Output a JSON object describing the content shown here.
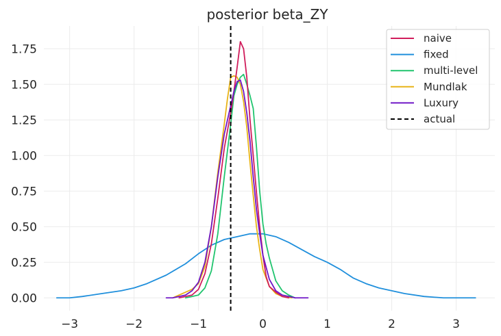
{
  "chart_data": {
    "type": "line",
    "title": "posterior beta_ZY",
    "xlabel": "",
    "ylabel": "",
    "xlim": [
      -3.4,
      3.6
    ],
    "ylim": [
      -0.09,
      1.91
    ],
    "xticks": [
      -3,
      -2,
      -1,
      0,
      1,
      2,
      3
    ],
    "xtick_labels": [
      "−3",
      "−2",
      "−1",
      "0",
      "1",
      "2",
      "3"
    ],
    "yticks": [
      0.0,
      0.25,
      0.5,
      0.75,
      1.0,
      1.25,
      1.5,
      1.75
    ],
    "ytick_labels": [
      "0.00",
      "0.25",
      "0.50",
      "0.75",
      "1.00",
      "1.25",
      "1.50",
      "1.75"
    ],
    "grid": true,
    "legend_position": "top-right",
    "series": [
      {
        "name": "naive",
        "color": "#d01c5b",
        "style": "solid",
        "points": [
          [
            -1.3,
            0.0
          ],
          [
            -1.2,
            0.01
          ],
          [
            -1.1,
            0.02
          ],
          [
            -1.0,
            0.06
          ],
          [
            -0.9,
            0.17
          ],
          [
            -0.8,
            0.38
          ],
          [
            -0.7,
            0.7
          ],
          [
            -0.6,
            1.05
          ],
          [
            -0.5,
            1.3
          ],
          [
            -0.45,
            1.45
          ],
          [
            -0.4,
            1.62
          ],
          [
            -0.35,
            1.8
          ],
          [
            -0.3,
            1.75
          ],
          [
            -0.25,
            1.55
          ],
          [
            -0.2,
            1.25
          ],
          [
            -0.15,
            1.0
          ],
          [
            -0.1,
            0.74
          ],
          [
            -0.05,
            0.5
          ],
          [
            0.0,
            0.3
          ],
          [
            0.05,
            0.15
          ],
          [
            0.1,
            0.08
          ],
          [
            0.2,
            0.04
          ],
          [
            0.3,
            0.01
          ],
          [
            0.4,
            0.0
          ]
        ]
      },
      {
        "name": "fixed",
        "color": "#1f8fdc",
        "style": "solid",
        "points": [
          [
            -3.2,
            0.0
          ],
          [
            -3.0,
            0.0
          ],
          [
            -2.8,
            0.01
          ],
          [
            -2.5,
            0.03
          ],
          [
            -2.2,
            0.05
          ],
          [
            -2.0,
            0.07
          ],
          [
            -1.8,
            0.1
          ],
          [
            -1.5,
            0.16
          ],
          [
            -1.2,
            0.24
          ],
          [
            -1.0,
            0.31
          ],
          [
            -0.8,
            0.37
          ],
          [
            -0.6,
            0.41
          ],
          [
            -0.4,
            0.43
          ],
          [
            -0.2,
            0.45
          ],
          [
            0.0,
            0.45
          ],
          [
            0.2,
            0.43
          ],
          [
            0.4,
            0.39
          ],
          [
            0.6,
            0.34
          ],
          [
            0.8,
            0.29
          ],
          [
            1.0,
            0.25
          ],
          [
            1.2,
            0.2
          ],
          [
            1.4,
            0.14
          ],
          [
            1.6,
            0.1
          ],
          [
            1.8,
            0.07
          ],
          [
            2.0,
            0.05
          ],
          [
            2.2,
            0.03
          ],
          [
            2.5,
            0.01
          ],
          [
            2.8,
            0.0
          ],
          [
            3.3,
            0.0
          ]
        ]
      },
      {
        "name": "multi-level",
        "color": "#20c46e",
        "style": "solid",
        "points": [
          [
            -1.2,
            0.0
          ],
          [
            -1.1,
            0.01
          ],
          [
            -1.0,
            0.02
          ],
          [
            -0.9,
            0.07
          ],
          [
            -0.8,
            0.19
          ],
          [
            -0.7,
            0.45
          ],
          [
            -0.6,
            0.85
          ],
          [
            -0.5,
            1.22
          ],
          [
            -0.45,
            1.42
          ],
          [
            -0.4,
            1.5
          ],
          [
            -0.35,
            1.55
          ],
          [
            -0.3,
            1.57
          ],
          [
            -0.25,
            1.5
          ],
          [
            -0.2,
            1.42
          ],
          [
            -0.15,
            1.33
          ],
          [
            -0.1,
            1.06
          ],
          [
            -0.05,
            0.75
          ],
          [
            0.0,
            0.52
          ],
          [
            0.05,
            0.38
          ],
          [
            0.1,
            0.28
          ],
          [
            0.2,
            0.12
          ],
          [
            0.3,
            0.05
          ],
          [
            0.4,
            0.02
          ],
          [
            0.5,
            0.0
          ]
        ]
      },
      {
        "name": "Mundlak",
        "color": "#e8b317",
        "style": "solid",
        "points": [
          [
            -1.4,
            0.0
          ],
          [
            -1.3,
            0.02
          ],
          [
            -1.2,
            0.04
          ],
          [
            -1.1,
            0.06
          ],
          [
            -1.0,
            0.1
          ],
          [
            -0.9,
            0.22
          ],
          [
            -0.8,
            0.5
          ],
          [
            -0.7,
            0.88
          ],
          [
            -0.6,
            1.22
          ],
          [
            -0.55,
            1.4
          ],
          [
            -0.5,
            1.55
          ],
          [
            -0.45,
            1.56
          ],
          [
            -0.4,
            1.55
          ],
          [
            -0.35,
            1.5
          ],
          [
            -0.3,
            1.38
          ],
          [
            -0.25,
            1.2
          ],
          [
            -0.2,
            0.95
          ],
          [
            -0.15,
            0.72
          ],
          [
            -0.1,
            0.5
          ],
          [
            -0.05,
            0.34
          ],
          [
            0.0,
            0.2
          ],
          [
            0.1,
            0.08
          ],
          [
            0.2,
            0.03
          ],
          [
            0.3,
            0.01
          ],
          [
            0.45,
            0.0
          ]
        ]
      },
      {
        "name": "Luxury",
        "color": "#6f16c6",
        "style": "solid",
        "points": [
          [
            -1.5,
            0.0
          ],
          [
            -1.4,
            0.0
          ],
          [
            -1.3,
            0.01
          ],
          [
            -1.2,
            0.02
          ],
          [
            -1.1,
            0.05
          ],
          [
            -1.0,
            0.11
          ],
          [
            -0.9,
            0.25
          ],
          [
            -0.8,
            0.5
          ],
          [
            -0.7,
            0.85
          ],
          [
            -0.6,
            1.15
          ],
          [
            -0.5,
            1.35
          ],
          [
            -0.45,
            1.45
          ],
          [
            -0.4,
            1.52
          ],
          [
            -0.35,
            1.53
          ],
          [
            -0.3,
            1.45
          ],
          [
            -0.25,
            1.3
          ],
          [
            -0.2,
            1.1
          ],
          [
            -0.15,
            0.85
          ],
          [
            -0.1,
            0.62
          ],
          [
            -0.05,
            0.45
          ],
          [
            0.0,
            0.3
          ],
          [
            0.1,
            0.13
          ],
          [
            0.2,
            0.05
          ],
          [
            0.3,
            0.02
          ],
          [
            0.5,
            0.0
          ],
          [
            0.7,
            0.0
          ]
        ]
      },
      {
        "name": "actual",
        "color": "#000000",
        "style": "dashed",
        "points": [
          [
            -0.5,
            -0.09
          ],
          [
            -0.5,
            1.91
          ]
        ]
      }
    ]
  }
}
